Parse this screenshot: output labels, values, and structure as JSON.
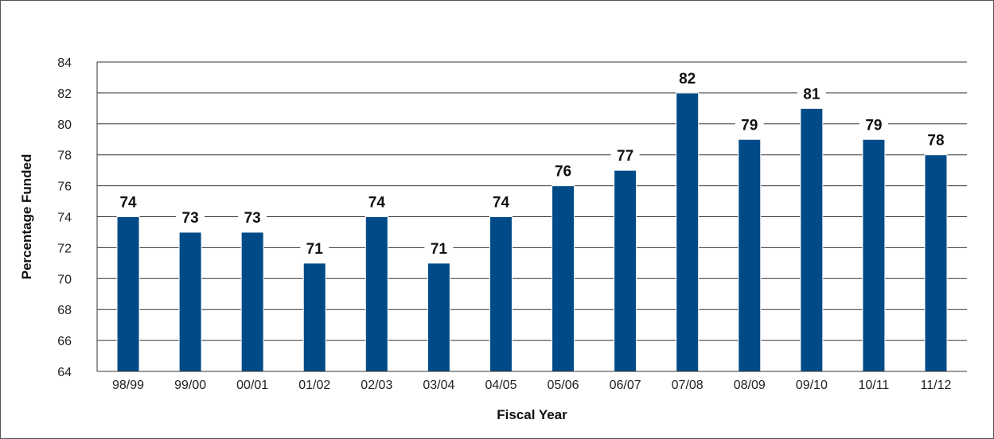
{
  "chart_data": {
    "type": "bar",
    "title": "",
    "xlabel": "Fiscal Year",
    "ylabel": "Percentage Funded",
    "categories": [
      "98/99",
      "99/00",
      "00/01",
      "01/02",
      "02/03",
      "03/04",
      "04/05",
      "05/06",
      "06/07",
      "07/08",
      "08/09",
      "09/10",
      "10/11",
      "11/12"
    ],
    "values": [
      74,
      73,
      73,
      71,
      74,
      71,
      74,
      76,
      77,
      82,
      79,
      81,
      79,
      78
    ],
    "ylim": [
      64,
      84
    ],
    "yticks": [
      64,
      66,
      68,
      70,
      72,
      74,
      76,
      78,
      80,
      82,
      84
    ],
    "grid": true,
    "legend": "none",
    "bar_color": "#004b87"
  }
}
